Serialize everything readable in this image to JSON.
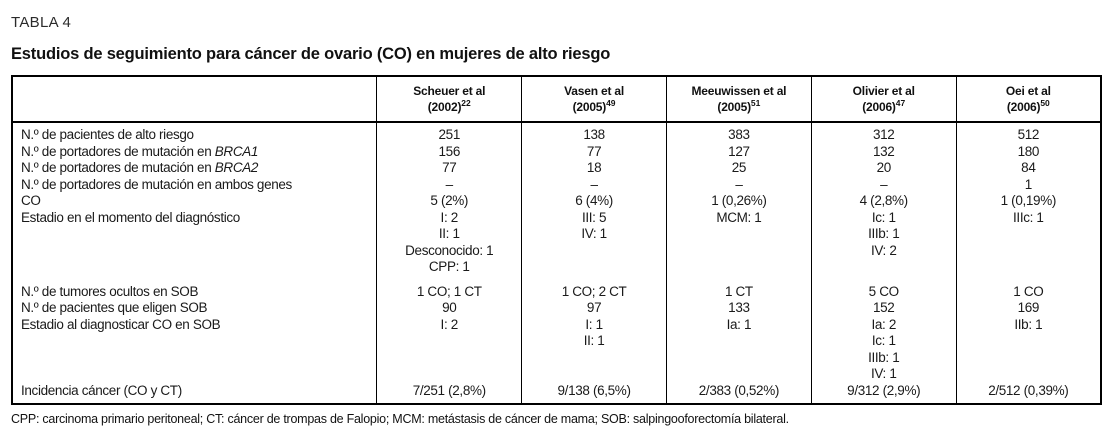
{
  "page": {
    "eyebrow": "TABLA 4",
    "title": "Estudios de seguimiento para cáncer de ovario (CO) en mujeres de alto riesgo",
    "footnote": "CPP: carcinoma primario peritoneal; CT: cáncer de trompas de Falopio; MCM: metástasis de cáncer de mama; SOB: salpingooforectomía bilateral."
  },
  "table": {
    "header": [
      {
        "name": "",
        "year": "",
        "ref": ""
      },
      {
        "name": "Scheuer et al",
        "year": "(2002)",
        "ref": "22"
      },
      {
        "name": "Vasen et al",
        "year": "(2005)",
        "ref": "49"
      },
      {
        "name": "Meeuwissen et al",
        "year": "(2005)",
        "ref": "51"
      },
      {
        "name": "Olivier et al",
        "year": "(2006)",
        "ref": "47"
      },
      {
        "name": "Oei et al",
        "year": "(2006)",
        "ref": "50"
      }
    ],
    "rows": [
      {
        "label": "N.º de pacientes de alto riesgo",
        "cells": [
          "251",
          "138",
          "383",
          "312",
          "512"
        ]
      },
      {
        "label": "N.º de portadores de mutación en ",
        "label_italic": "BRCA1",
        "cells": [
          "156",
          "77",
          "127",
          "132",
          "180"
        ]
      },
      {
        "label": "N.º de portadores de mutación en ",
        "label_italic": "BRCA2",
        "cells": [
          "77",
          "18",
          "25",
          "20",
          "84"
        ]
      },
      {
        "label": "N.º de portadores de mutación en ambos genes",
        "cells": [
          "–",
          "–",
          "–",
          "–",
          "1"
        ]
      },
      {
        "label": "CO",
        "cells": [
          "5 (2%)",
          "6 (4%)",
          "1 (0,26%)",
          "4 (2,8%)",
          "1 (0,19%)"
        ]
      },
      {
        "label": "Estadio en el momento del diagnóstico",
        "cells": [
          "I: 2",
          "III: 5",
          "MCM: 1",
          "Ic: 1",
          "IIIc: 1"
        ]
      },
      {
        "label": "",
        "cells": [
          "II: 1",
          "IV: 1",
          "",
          "IIIb: 1",
          ""
        ]
      },
      {
        "label": "",
        "cells": [
          "Desconocido: 1",
          "",
          "",
          "IV: 2",
          ""
        ]
      },
      {
        "label": "",
        "cells": [
          "CPP: 1",
          "",
          "",
          "",
          ""
        ]
      },
      {
        "label": "N.º de tumores ocultos en SOB",
        "gap": true,
        "cells": [
          "1 CO; 1 CT",
          "1 CO; 2 CT",
          "1 CT",
          "5 CO",
          "1 CO"
        ]
      },
      {
        "label": "N.º de pacientes que eligen SOB",
        "cells": [
          "90",
          "97",
          "133",
          "152",
          "169"
        ]
      },
      {
        "label": "Estadio al diagnosticar CO en SOB",
        "cells": [
          "I: 2",
          "I: 1",
          "Ia: 1",
          "Ia: 2",
          "IIb: 1"
        ]
      },
      {
        "label": "",
        "cells": [
          "",
          "II: 1",
          "",
          "Ic: 1",
          ""
        ]
      },
      {
        "label": "",
        "cells": [
          "",
          "",
          "",
          "IIIb: 1",
          ""
        ]
      },
      {
        "label": "",
        "cells": [
          "",
          "",
          "",
          "IV: 1",
          ""
        ]
      },
      {
        "label": "Incidencia cáncer (CO y CT)",
        "cells": [
          "7/251 (2,8%)",
          "9/138 (6,5%)",
          "2/383 (0,52%)",
          "9/312 (2,9%)",
          "2/512 (0,39%)"
        ]
      }
    ],
    "layout": {
      "label_col_width": "33.5%",
      "data_col_width": "13.3%"
    }
  },
  "colors": {
    "text": "#1a1a1a",
    "border": "#000000",
    "background": "#ffffff"
  }
}
